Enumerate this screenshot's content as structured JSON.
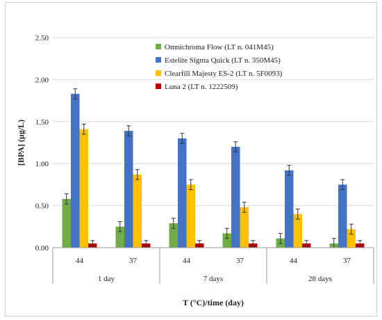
{
  "chart_data": {
    "type": "bar",
    "title": "",
    "ylabel": "[BPA] (µg/L)",
    "xlabel": "T (°C)/time (day)",
    "ylim": [
      0,
      2.5
    ],
    "yticks": [
      "0.00",
      "0.50",
      "1.00",
      "1.50",
      "2.00",
      "2.50"
    ],
    "grid": true,
    "legend_position": "top-right",
    "groups": [
      {
        "label": "1 day",
        "categories": [
          "44",
          "37"
        ]
      },
      {
        "label": "7 days",
        "categories": [
          "44",
          "37"
        ]
      },
      {
        "label": "28 days",
        "categories": [
          "44",
          "37"
        ]
      }
    ],
    "categories": [
      "44",
      "37",
      "44",
      "37",
      "44",
      "37"
    ],
    "series": [
      {
        "name": "Omnichroma Flow (LT n. 041M45)",
        "color": "#70ad47",
        "values": [
          0.58,
          0.25,
          0.29,
          0.17,
          0.11,
          0.05
        ],
        "errors": [
          0.06,
          0.06,
          0.06,
          0.06,
          0.06,
          0.06
        ]
      },
      {
        "name": "Estelite Sigma Quick (LT n. 350M45)",
        "color": "#4472c4",
        "values": [
          1.83,
          1.39,
          1.3,
          1.2,
          0.92,
          0.75
        ],
        "errors": [
          0.06,
          0.06,
          0.06,
          0.06,
          0.06,
          0.06
        ]
      },
      {
        "name": "Clearfill Majesty ES-2 (LT n. 5F0093)",
        "color": "#ffc000",
        "values": [
          1.41,
          0.87,
          0.75,
          0.48,
          0.4,
          0.22
        ],
        "errors": [
          0.06,
          0.06,
          0.06,
          0.06,
          0.06,
          0.06
        ]
      },
      {
        "name": "Luna 2 (LT n. 1222509)",
        "color": "#c00000",
        "values": [
          0.05,
          0.05,
          0.05,
          0.05,
          0.05,
          0.05
        ],
        "errors": [
          0.035,
          0.035,
          0.035,
          0.035,
          0.035,
          0.035
        ]
      }
    ]
  }
}
